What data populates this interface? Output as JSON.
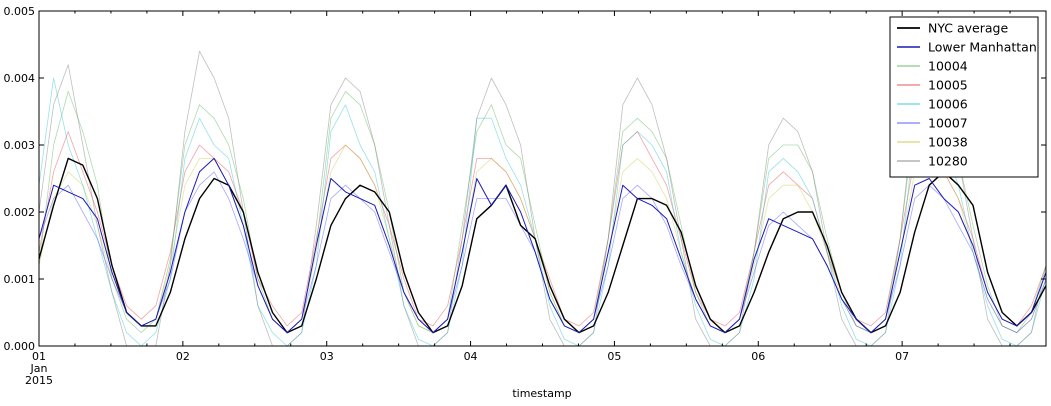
{
  "chart_data": {
    "type": "line",
    "title": "",
    "xlabel": "timestamp",
    "ylabel": "",
    "xlim": [
      0,
      7
    ],
    "ylim": [
      0,
      0.005
    ],
    "x_unit": "days since 2015-01-01 00:00",
    "x_ticks": [
      {
        "value": 0,
        "label": "01",
        "sublabel": "Jan",
        "sublabel2": "2015"
      },
      {
        "value": 1,
        "label": "02"
      },
      {
        "value": 2,
        "label": "03"
      },
      {
        "value": 3,
        "label": "04"
      },
      {
        "value": 4,
        "label": "05"
      },
      {
        "value": 5,
        "label": "06"
      },
      {
        "value": 6,
        "label": "07"
      }
    ],
    "y_ticks": [
      {
        "value": 0.0,
        "label": "0.000"
      },
      {
        "value": 0.001,
        "label": "0.001"
      },
      {
        "value": 0.002,
        "label": "0.002"
      },
      {
        "value": 0.003,
        "label": "0.003"
      },
      {
        "value": 0.004,
        "label": "0.004"
      },
      {
        "value": 0.005,
        "label": "0.005"
      }
    ],
    "grid": false,
    "legend_position": "top-right",
    "series": [
      {
        "name": "NYC average",
        "color": "#000000",
        "width": 1.4,
        "opacity": 1,
        "values": [
          0.0013,
          0.0021,
          0.0028,
          0.0027,
          0.0022,
          0.0012,
          0.0005,
          0.0003,
          0.0003,
          0.0008,
          0.0016,
          0.0022,
          0.0025,
          0.0024,
          0.002,
          0.0011,
          0.0005,
          0.0002,
          0.0003,
          0.001,
          0.0018,
          0.0022,
          0.0024,
          0.0023,
          0.002,
          0.0011,
          0.0005,
          0.0002,
          0.0003,
          0.0009,
          0.0019,
          0.0021,
          0.0024,
          0.0018,
          0.0016,
          0.0009,
          0.0004,
          0.0002,
          0.0003,
          0.0008,
          0.0015,
          0.0022,
          0.0022,
          0.0021,
          0.0017,
          0.0009,
          0.0004,
          0.0002,
          0.0003,
          0.0008,
          0.0014,
          0.0019,
          0.002,
          0.002,
          0.0015,
          0.0008,
          0.0004,
          0.0002,
          0.0003,
          0.0008,
          0.0017,
          0.0024,
          0.0026,
          0.0024,
          0.0021,
          0.0011,
          0.0005,
          0.0003,
          0.0005,
          0.0009
        ]
      },
      {
        "name": "Lower Manhattan",
        "color": "#1a1ab8",
        "width": 1.0,
        "opacity": 1,
        "values": [
          0.0016,
          0.0024,
          0.0023,
          0.0022,
          0.0019,
          0.0011,
          0.0005,
          0.0003,
          0.0004,
          0.0011,
          0.002,
          0.0026,
          0.0028,
          0.0024,
          0.0018,
          0.0009,
          0.0004,
          0.0002,
          0.0004,
          0.0015,
          0.0025,
          0.0023,
          0.0022,
          0.0021,
          0.0015,
          0.0008,
          0.0004,
          0.0002,
          0.0004,
          0.0014,
          0.0025,
          0.0021,
          0.0024,
          0.002,
          0.0014,
          0.0007,
          0.0003,
          0.0002,
          0.0004,
          0.0014,
          0.0024,
          0.0022,
          0.0021,
          0.0019,
          0.0013,
          0.0007,
          0.0003,
          0.0002,
          0.0004,
          0.0013,
          0.0019,
          0.0018,
          0.0017,
          0.0016,
          0.0012,
          0.0007,
          0.0004,
          0.0002,
          0.0004,
          0.0014,
          0.0024,
          0.0025,
          0.0022,
          0.002,
          0.0015,
          0.0008,
          0.0004,
          0.0003,
          0.0005,
          0.0011
        ]
      },
      {
        "name": "10004",
        "color": "#4daf4a",
        "width": 0.8,
        "opacity": 0.45,
        "values": [
          0.0012,
          0.003,
          0.0038,
          0.0032,
          0.0024,
          0.001,
          0.0004,
          0.0002,
          0.0004,
          0.0013,
          0.003,
          0.0036,
          0.0034,
          0.003,
          0.0022,
          0.001,
          0.0004,
          0.0002,
          0.0004,
          0.0015,
          0.0034,
          0.0038,
          0.0036,
          0.003,
          0.002,
          0.0008,
          0.0003,
          0.0002,
          0.0004,
          0.0018,
          0.0032,
          0.0036,
          0.003,
          0.0028,
          0.0018,
          0.0008,
          0.0003,
          0.0002,
          0.0004,
          0.0016,
          0.0032,
          0.0034,
          0.0032,
          0.0028,
          0.0018,
          0.0008,
          0.0003,
          0.0002,
          0.0004,
          0.0014,
          0.0028,
          0.003,
          0.003,
          0.0026,
          0.0016,
          0.0008,
          0.0003,
          0.0002,
          0.0004,
          0.0016,
          0.0034,
          0.0038,
          0.0034,
          0.0028,
          0.0018,
          0.0009,
          0.0003,
          0.0002,
          0.0005,
          0.0012
        ]
      },
      {
        "name": "10005",
        "color": "#e41a1c",
        "width": 0.8,
        "opacity": 0.4,
        "values": [
          0.0014,
          0.0026,
          0.0032,
          0.0026,
          0.002,
          0.0012,
          0.0006,
          0.0004,
          0.0006,
          0.0014,
          0.0026,
          0.003,
          0.0028,
          0.0026,
          0.002,
          0.001,
          0.0006,
          0.0003,
          0.0005,
          0.0016,
          0.0028,
          0.003,
          0.0028,
          0.0024,
          0.0018,
          0.001,
          0.0004,
          0.0003,
          0.0006,
          0.0016,
          0.0028,
          0.0028,
          0.0026,
          0.0022,
          0.0016,
          0.001,
          0.0004,
          0.0003,
          0.0005,
          0.0016,
          0.003,
          0.0032,
          0.0028,
          0.0024,
          0.0016,
          0.0008,
          0.0004,
          0.0003,
          0.0005,
          0.0014,
          0.0024,
          0.0026,
          0.0024,
          0.0022,
          0.0014,
          0.0008,
          0.0004,
          0.0003,
          0.0005,
          0.0016,
          0.0028,
          0.003,
          0.0026,
          0.0022,
          0.0016,
          0.0008,
          0.0004,
          0.0003,
          0.0006,
          0.0012
        ]
      },
      {
        "name": "10006",
        "color": "#17becf",
        "width": 0.8,
        "opacity": 0.45,
        "values": [
          0.0024,
          0.004,
          0.003,
          0.0024,
          0.0016,
          0.0008,
          0.0002,
          0.0,
          0.0002,
          0.001,
          0.0028,
          0.0034,
          0.003,
          0.0028,
          0.0018,
          0.0006,
          0.0002,
          0.0,
          0.0002,
          0.0012,
          0.0032,
          0.0036,
          0.003,
          0.0026,
          0.0016,
          0.0006,
          0.0001,
          0.0,
          0.0002,
          0.0012,
          0.0034,
          0.0034,
          0.0028,
          0.0024,
          0.0016,
          0.0006,
          0.0001,
          0.0,
          0.0002,
          0.0012,
          0.003,
          0.0032,
          0.003,
          0.0026,
          0.0014,
          0.0006,
          0.0001,
          0.0,
          0.0002,
          0.001,
          0.0026,
          0.0028,
          0.0026,
          0.0022,
          0.0014,
          0.0006,
          0.0001,
          0.0,
          0.0002,
          0.0012,
          0.0032,
          0.0036,
          0.003,
          0.0024,
          0.0014,
          0.0006,
          0.0001,
          0.0,
          0.0002,
          0.001
        ]
      },
      {
        "name": "10007",
        "color": "#3b3bff",
        "width": 0.8,
        "opacity": 0.45,
        "values": [
          0.0016,
          0.0022,
          0.0024,
          0.002,
          0.0016,
          0.001,
          0.0005,
          0.0003,
          0.0004,
          0.001,
          0.002,
          0.0024,
          0.0026,
          0.0022,
          0.0016,
          0.0009,
          0.0004,
          0.0002,
          0.0004,
          0.0012,
          0.0022,
          0.0024,
          0.0022,
          0.002,
          0.0014,
          0.0008,
          0.0004,
          0.0002,
          0.0004,
          0.0012,
          0.0022,
          0.0022,
          0.0022,
          0.0018,
          0.0014,
          0.0007,
          0.0003,
          0.0002,
          0.0004,
          0.0012,
          0.0022,
          0.0024,
          0.0022,
          0.0018,
          0.0012,
          0.0007,
          0.0003,
          0.0002,
          0.0004,
          0.0011,
          0.0018,
          0.002,
          0.0018,
          0.0016,
          0.0012,
          0.0007,
          0.0003,
          0.0002,
          0.0004,
          0.0012,
          0.0022,
          0.0024,
          0.0022,
          0.0018,
          0.0014,
          0.0007,
          0.0003,
          0.0002,
          0.0004,
          0.001
        ]
      },
      {
        "name": "10038",
        "color": "#bcbd22",
        "width": 0.8,
        "opacity": 0.4,
        "values": [
          0.0012,
          0.0022,
          0.0026,
          0.0024,
          0.0018,
          0.001,
          0.0005,
          0.0003,
          0.0004,
          0.0012,
          0.0024,
          0.0028,
          0.0028,
          0.0024,
          0.0018,
          0.0009,
          0.0004,
          0.0002,
          0.0004,
          0.0014,
          0.0026,
          0.003,
          0.0028,
          0.0024,
          0.0016,
          0.0008,
          0.0003,
          0.0002,
          0.0004,
          0.0014,
          0.0026,
          0.0028,
          0.0026,
          0.0022,
          0.0016,
          0.0008,
          0.0003,
          0.0002,
          0.0004,
          0.0014,
          0.0026,
          0.0028,
          0.0026,
          0.0022,
          0.0014,
          0.0007,
          0.0003,
          0.0002,
          0.0004,
          0.0012,
          0.0022,
          0.0024,
          0.0024,
          0.002,
          0.0014,
          0.0007,
          0.0003,
          0.0002,
          0.0004,
          0.0014,
          0.0026,
          0.003,
          0.0026,
          0.0022,
          0.0014,
          0.0007,
          0.0003,
          0.0002,
          0.0004,
          0.001
        ]
      },
      {
        "name": "10280",
        "color": "#7f7f7f",
        "width": 0.8,
        "opacity": 0.5,
        "values": [
          0.002,
          0.0036,
          0.0042,
          0.003,
          0.0018,
          0.0008,
          0.0,
          0.0,
          0.0,
          0.0012,
          0.0032,
          0.0044,
          0.004,
          0.0034,
          0.002,
          0.0006,
          0.0,
          0.0,
          0.0002,
          0.0018,
          0.0036,
          0.004,
          0.0038,
          0.003,
          0.0018,
          0.0006,
          0.0,
          0.0,
          0.0002,
          0.0016,
          0.0034,
          0.004,
          0.0036,
          0.003,
          0.0016,
          0.0004,
          0.0,
          0.0,
          0.0002,
          0.0016,
          0.0036,
          0.004,
          0.0036,
          0.0028,
          0.0016,
          0.0004,
          0.0,
          0.0,
          0.0002,
          0.0014,
          0.003,
          0.0034,
          0.0032,
          0.0026,
          0.0014,
          0.0004,
          0.0,
          0.0,
          0.0002,
          0.0016,
          0.0036,
          0.0042,
          0.0036,
          0.0028,
          0.0016,
          0.0004,
          0.0,
          0.0,
          0.0002,
          0.0012
        ]
      }
    ]
  }
}
